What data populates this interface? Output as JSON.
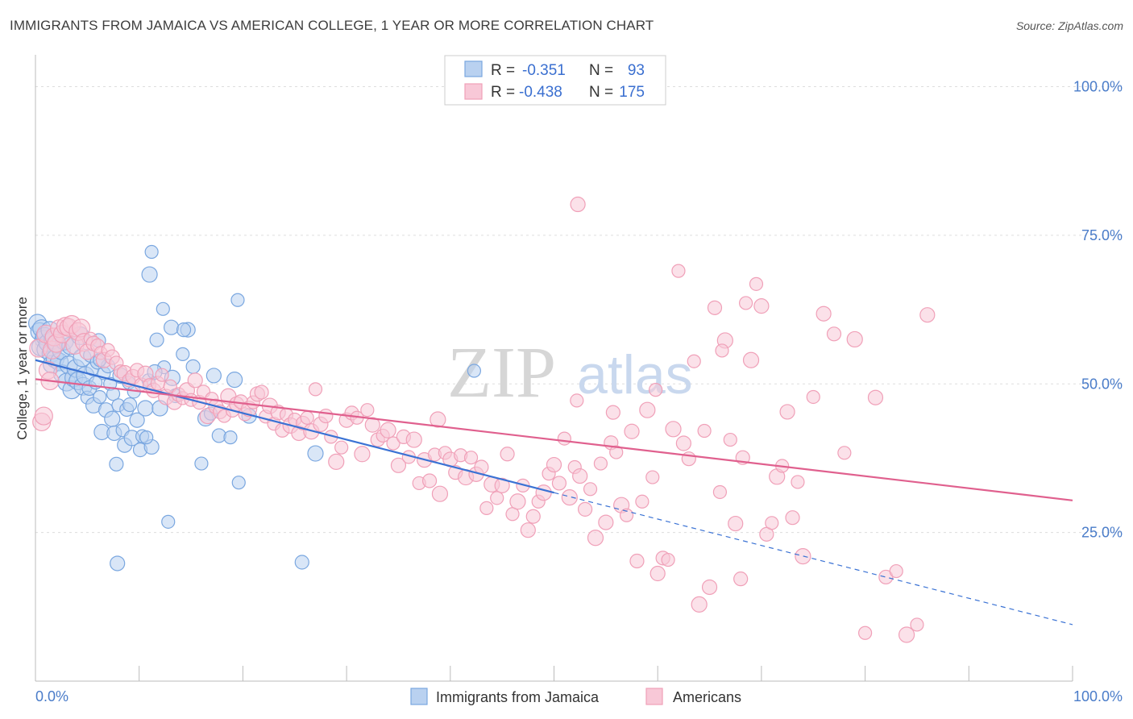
{
  "header": {
    "title": "IMMIGRANTS FROM JAMAICA VS AMERICAN COLLEGE, 1 YEAR OR MORE CORRELATION CHART",
    "source": "Source: ZipAtlas.com"
  },
  "watermark": {
    "zip": "ZIP",
    "atlas": "atlas"
  },
  "chart_data": {
    "type": "scatter",
    "title": "IMMIGRANTS FROM JAMAICA VS AMERICAN COLLEGE, 1 YEAR OR MORE CORRELATION CHART",
    "xlabel": "",
    "ylabel": "College, 1 year or more",
    "xlim": [
      0,
      100
    ],
    "ylim": [
      0,
      104
    ],
    "x_tick_labels": {
      "left": "0.0%",
      "right": "100.0%"
    },
    "y_ticks": [
      {
        "value": 25,
        "label": "25.0%"
      },
      {
        "value": 50,
        "label": "50.0%"
      },
      {
        "value": 75,
        "label": "75.0%"
      },
      {
        "value": 100,
        "label": "100.0%"
      }
    ],
    "legend": {
      "entries": [
        {
          "r_label": "R =",
          "r_value": "-0.351",
          "n_label": "N =",
          "n_value": "93"
        },
        {
          "r_label": "R =",
          "r_value": "-0.438",
          "n_label": "N =",
          "n_value": "175"
        }
      ]
    },
    "series": [
      {
        "name": "Immigrants from Jamaica",
        "color": "#7aa7e0",
        "fill": "#b9d1f0",
        "line_color": "#3a72d4",
        "r": -0.351,
        "n": 93,
        "trend": {
          "x0": 0,
          "y0": 54.0,
          "x1": 50,
          "y1": 31.7,
          "dash_to_x": 100,
          "dash_to_y": 9.5
        },
        "points": [
          [
            0.2,
            60.2
          ],
          [
            0.4,
            58.8
          ],
          [
            0.6,
            59.3
          ],
          [
            0.8,
            57.5
          ],
          [
            0.5,
            56.2
          ],
          [
            0.9,
            58.0
          ],
          [
            1.0,
            55.8
          ],
          [
            1.2,
            56.9
          ],
          [
            1.4,
            59.0
          ],
          [
            1.5,
            55.1
          ],
          [
            1.6,
            53.3
          ],
          [
            1.7,
            57.4
          ],
          [
            1.9,
            54.2
          ],
          [
            2.1,
            56.8
          ],
          [
            2.3,
            53.7
          ],
          [
            2.5,
            55.6
          ],
          [
            2.6,
            51.7
          ],
          [
            2.8,
            57.2
          ],
          [
            3.0,
            50.3
          ],
          [
            3.2,
            53.2
          ],
          [
            3.4,
            56.4
          ],
          [
            3.5,
            49.0
          ],
          [
            3.7,
            51.0
          ],
          [
            3.9,
            52.6
          ],
          [
            4.1,
            50.5
          ],
          [
            4.3,
            58.1
          ],
          [
            4.5,
            54.4
          ],
          [
            4.6,
            49.6
          ],
          [
            4.8,
            51.4
          ],
          [
            5.0,
            47.7
          ],
          [
            5.2,
            49.3
          ],
          [
            5.3,
            54.8
          ],
          [
            5.5,
            52.5
          ],
          [
            5.6,
            46.4
          ],
          [
            5.8,
            50.2
          ],
          [
            6.0,
            53.7
          ],
          [
            6.1,
            57.3
          ],
          [
            6.2,
            47.8
          ],
          [
            6.4,
            41.9
          ],
          [
            6.6,
            51.8
          ],
          [
            6.8,
            45.6
          ],
          [
            7.0,
            53.0
          ],
          [
            7.2,
            50.0
          ],
          [
            7.4,
            44.1
          ],
          [
            7.5,
            48.3
          ],
          [
            7.6,
            41.7
          ],
          [
            7.8,
            36.5
          ],
          [
            8.0,
            46.4
          ],
          [
            8.2,
            51.4
          ],
          [
            8.4,
            42.2
          ],
          [
            8.6,
            39.7
          ],
          [
            8.8,
            45.7
          ],
          [
            9.0,
            50.2
          ],
          [
            9.3,
            40.9
          ],
          [
            9.5,
            48.7
          ],
          [
            9.8,
            43.9
          ],
          [
            10.1,
            38.9
          ],
          [
            10.3,
            41.2
          ],
          [
            10.6,
            45.9
          ],
          [
            10.9,
            50.6
          ],
          [
            11.2,
            39.4
          ],
          [
            11.7,
            57.4
          ],
          [
            12.4,
            52.8
          ],
          [
            13.2,
            51.0
          ],
          [
            14.2,
            55.0
          ],
          [
            14.7,
            59.1
          ],
          [
            15.2,
            52.9
          ],
          [
            16.0,
            36.6
          ],
          [
            16.4,
            44.2
          ],
          [
            16.9,
            45.0
          ],
          [
            17.2,
            51.4
          ],
          [
            17.7,
            41.3
          ],
          [
            18.8,
            41.0
          ],
          [
            19.2,
            50.7
          ],
          [
            19.6,
            33.4
          ],
          [
            20.6,
            44.6
          ],
          [
            9.1,
            46.5
          ],
          [
            10.7,
            41.0
          ],
          [
            12.0,
            45.9
          ],
          [
            12.8,
            26.8
          ],
          [
            7.9,
            19.8
          ],
          [
            25.7,
            20.0
          ],
          [
            11.2,
            72.2
          ],
          [
            11.0,
            68.4
          ],
          [
            12.3,
            62.6
          ],
          [
            13.1,
            59.5
          ],
          [
            14.3,
            59.1
          ],
          [
            19.5,
            64.1
          ],
          [
            27.0,
            38.3
          ],
          [
            42.3,
            52.2
          ],
          [
            11.5,
            52.0
          ],
          [
            13.5,
            48.0
          ],
          [
            6.2,
            54.0
          ]
        ]
      },
      {
        "name": "Americans",
        "color": "#f0a0b8",
        "fill": "#f8c8d7",
        "line_color": "#e0608e",
        "r": -0.438,
        "n": 175,
        "trend": {
          "x0": 0,
          "y0": 50.8,
          "x1": 100,
          "y1": 30.4
        },
        "points": [
          [
            0.3,
            56.0
          ],
          [
            0.6,
            43.6
          ],
          [
            0.8,
            44.6
          ],
          [
            1.0,
            58.4
          ],
          [
            1.2,
            52.3
          ],
          [
            1.4,
            50.5
          ],
          [
            1.6,
            55.7
          ],
          [
            1.8,
            57.9
          ],
          [
            2.0,
            56.8
          ],
          [
            2.3,
            59.3
          ],
          [
            2.6,
            58.4
          ],
          [
            2.9,
            59.7
          ],
          [
            3.2,
            59.5
          ],
          [
            3.5,
            60.0
          ],
          [
            3.8,
            56.5
          ],
          [
            4.1,
            58.8
          ],
          [
            4.4,
            59.4
          ],
          [
            4.7,
            57.0
          ],
          [
            5.0,
            55.4
          ],
          [
            5.3,
            57.6
          ],
          [
            5.6,
            56.8
          ],
          [
            6.0,
            56.4
          ],
          [
            6.3,
            55.2
          ],
          [
            6.6,
            54.0
          ],
          [
            7.0,
            55.7
          ],
          [
            7.4,
            54.5
          ],
          [
            7.8,
            53.5
          ],
          [
            8.2,
            52.1
          ],
          [
            8.6,
            51.8
          ],
          [
            9.0,
            50.6
          ],
          [
            9.4,
            51.2
          ],
          [
            9.8,
            52.3
          ],
          [
            10.2,
            49.9
          ],
          [
            10.6,
            51.7
          ],
          [
            11.0,
            49.8
          ],
          [
            11.4,
            48.9
          ],
          [
            11.8,
            50.1
          ],
          [
            12.2,
            51.5
          ],
          [
            12.6,
            47.8
          ],
          [
            13.0,
            49.6
          ],
          [
            13.4,
            46.9
          ],
          [
            13.8,
            48.2
          ],
          [
            14.2,
            47.6
          ],
          [
            14.6,
            48.9
          ],
          [
            15.0,
            47.3
          ],
          [
            15.4,
            50.6
          ],
          [
            15.8,
            46.9
          ],
          [
            16.2,
            48.7
          ],
          [
            16.6,
            44.6
          ],
          [
            17.0,
            47.5
          ],
          [
            17.4,
            46.2
          ],
          [
            17.8,
            45.3
          ],
          [
            18.2,
            44.6
          ],
          [
            18.6,
            47.9
          ],
          [
            19.0,
            45.5
          ],
          [
            19.4,
            46.6
          ],
          [
            19.8,
            47.0
          ],
          [
            20.2,
            44.9
          ],
          [
            20.6,
            45.8
          ],
          [
            21.0,
            46.9
          ],
          [
            21.4,
            48.3
          ],
          [
            21.8,
            48.6
          ],
          [
            22.2,
            44.5
          ],
          [
            22.6,
            46.3
          ],
          [
            23.0,
            43.3
          ],
          [
            23.4,
            45.2
          ],
          [
            23.8,
            42.2
          ],
          [
            24.2,
            44.8
          ],
          [
            24.6,
            43.0
          ],
          [
            25.0,
            44.0
          ],
          [
            25.4,
            41.7
          ],
          [
            25.8,
            43.4
          ],
          [
            26.2,
            44.3
          ],
          [
            26.6,
            42.0
          ],
          [
            27.0,
            49.1
          ],
          [
            27.5,
            43.2
          ],
          [
            28.0,
            44.6
          ],
          [
            28.5,
            41.1
          ],
          [
            29.0,
            36.9
          ],
          [
            29.5,
            39.3
          ],
          [
            30.0,
            43.9
          ],
          [
            30.5,
            45.1
          ],
          [
            31.0,
            44.3
          ],
          [
            31.5,
            38.2
          ],
          [
            32.0,
            45.6
          ],
          [
            32.5,
            43.1
          ],
          [
            33.0,
            40.6
          ],
          [
            33.5,
            41.3
          ],
          [
            34.0,
            42.2
          ],
          [
            34.5,
            40.0
          ],
          [
            35.0,
            36.3
          ],
          [
            35.5,
            41.1
          ],
          [
            36.0,
            37.7
          ],
          [
            36.5,
            40.6
          ],
          [
            37.0,
            33.3
          ],
          [
            37.5,
            37.2
          ],
          [
            38.0,
            33.7
          ],
          [
            38.5,
            38.1
          ],
          [
            39.0,
            31.5
          ],
          [
            39.5,
            38.4
          ],
          [
            40.0,
            37.3
          ],
          [
            40.5,
            35.1
          ],
          [
            41.0,
            38.0
          ],
          [
            41.5,
            34.3
          ],
          [
            42.0,
            37.6
          ],
          [
            42.5,
            34.8
          ],
          [
            43.0,
            36.0
          ],
          [
            43.5,
            29.1
          ],
          [
            44.0,
            33.1
          ],
          [
            44.5,
            30.8
          ],
          [
            45.0,
            32.9
          ],
          [
            45.5,
            38.2
          ],
          [
            46.0,
            28.1
          ],
          [
            46.5,
            30.2
          ],
          [
            47.0,
            32.9
          ],
          [
            47.5,
            25.4
          ],
          [
            48.0,
            27.7
          ],
          [
            48.5,
            30.2
          ],
          [
            49.0,
            31.7
          ],
          [
            49.5,
            34.9
          ],
          [
            50.0,
            36.4
          ],
          [
            50.5,
            33.3
          ],
          [
            51.0,
            40.8
          ],
          [
            51.5,
            30.9
          ],
          [
            52.0,
            36.0
          ],
          [
            52.5,
            34.5
          ],
          [
            53.0,
            28.9
          ],
          [
            53.5,
            32.3
          ],
          [
            54.0,
            24.1
          ],
          [
            54.5,
            36.6
          ],
          [
            55.0,
            26.7
          ],
          [
            55.5,
            40.1
          ],
          [
            56.0,
            38.5
          ],
          [
            56.5,
            29.6
          ],
          [
            57.0,
            27.9
          ],
          [
            57.5,
            42.0
          ],
          [
            58.0,
            20.2
          ],
          [
            58.5,
            30.2
          ],
          [
            59.0,
            45.6
          ],
          [
            59.5,
            34.3
          ],
          [
            60.0,
            18.1
          ],
          [
            60.5,
            20.7
          ],
          [
            61.0,
            20.4
          ],
          [
            61.5,
            42.4
          ],
          [
            62.0,
            69.0
          ],
          [
            62.5,
            40.0
          ],
          [
            63.0,
            37.4
          ],
          [
            63.5,
            53.8
          ],
          [
            64.0,
            12.9
          ],
          [
            64.5,
            42.1
          ],
          [
            65.0,
            15.8
          ],
          [
            65.5,
            62.8
          ],
          [
            66.0,
            31.8
          ],
          [
            66.5,
            57.3
          ],
          [
            67.0,
            40.6
          ],
          [
            67.5,
            26.5
          ],
          [
            68.0,
            17.2
          ],
          [
            68.5,
            63.6
          ],
          [
            69.0,
            54.0
          ],
          [
            69.5,
            66.8
          ],
          [
            70.0,
            63.1
          ],
          [
            70.5,
            24.7
          ],
          [
            71.0,
            26.6
          ],
          [
            71.5,
            34.4
          ],
          [
            72.0,
            36.2
          ],
          [
            72.5,
            45.3
          ],
          [
            73.0,
            27.5
          ],
          [
            73.5,
            33.5
          ],
          [
            74.0,
            21.0
          ],
          [
            75.0,
            47.8
          ],
          [
            76.0,
            61.8
          ],
          [
            77.0,
            58.4
          ],
          [
            78.0,
            38.4
          ],
          [
            79.0,
            57.5
          ],
          [
            80.0,
            8.1
          ],
          [
            81.0,
            47.7
          ],
          [
            82.0,
            17.5
          ],
          [
            83.0,
            18.5
          ],
          [
            84.0,
            7.8
          ],
          [
            85.0,
            9.5
          ],
          [
            86.0,
            61.6
          ],
          [
            55.7,
            45.2
          ],
          [
            59.8,
            49.0
          ],
          [
            38.8,
            44.0
          ],
          [
            52.2,
            47.2
          ],
          [
            52.3,
            80.2
          ],
          [
            68.2,
            37.6
          ],
          [
            66.2,
            55.6
          ]
        ]
      }
    ]
  },
  "bottom_legend": {
    "items": [
      {
        "label": "Immigrants from Jamaica"
      },
      {
        "label": "Americans"
      }
    ]
  }
}
